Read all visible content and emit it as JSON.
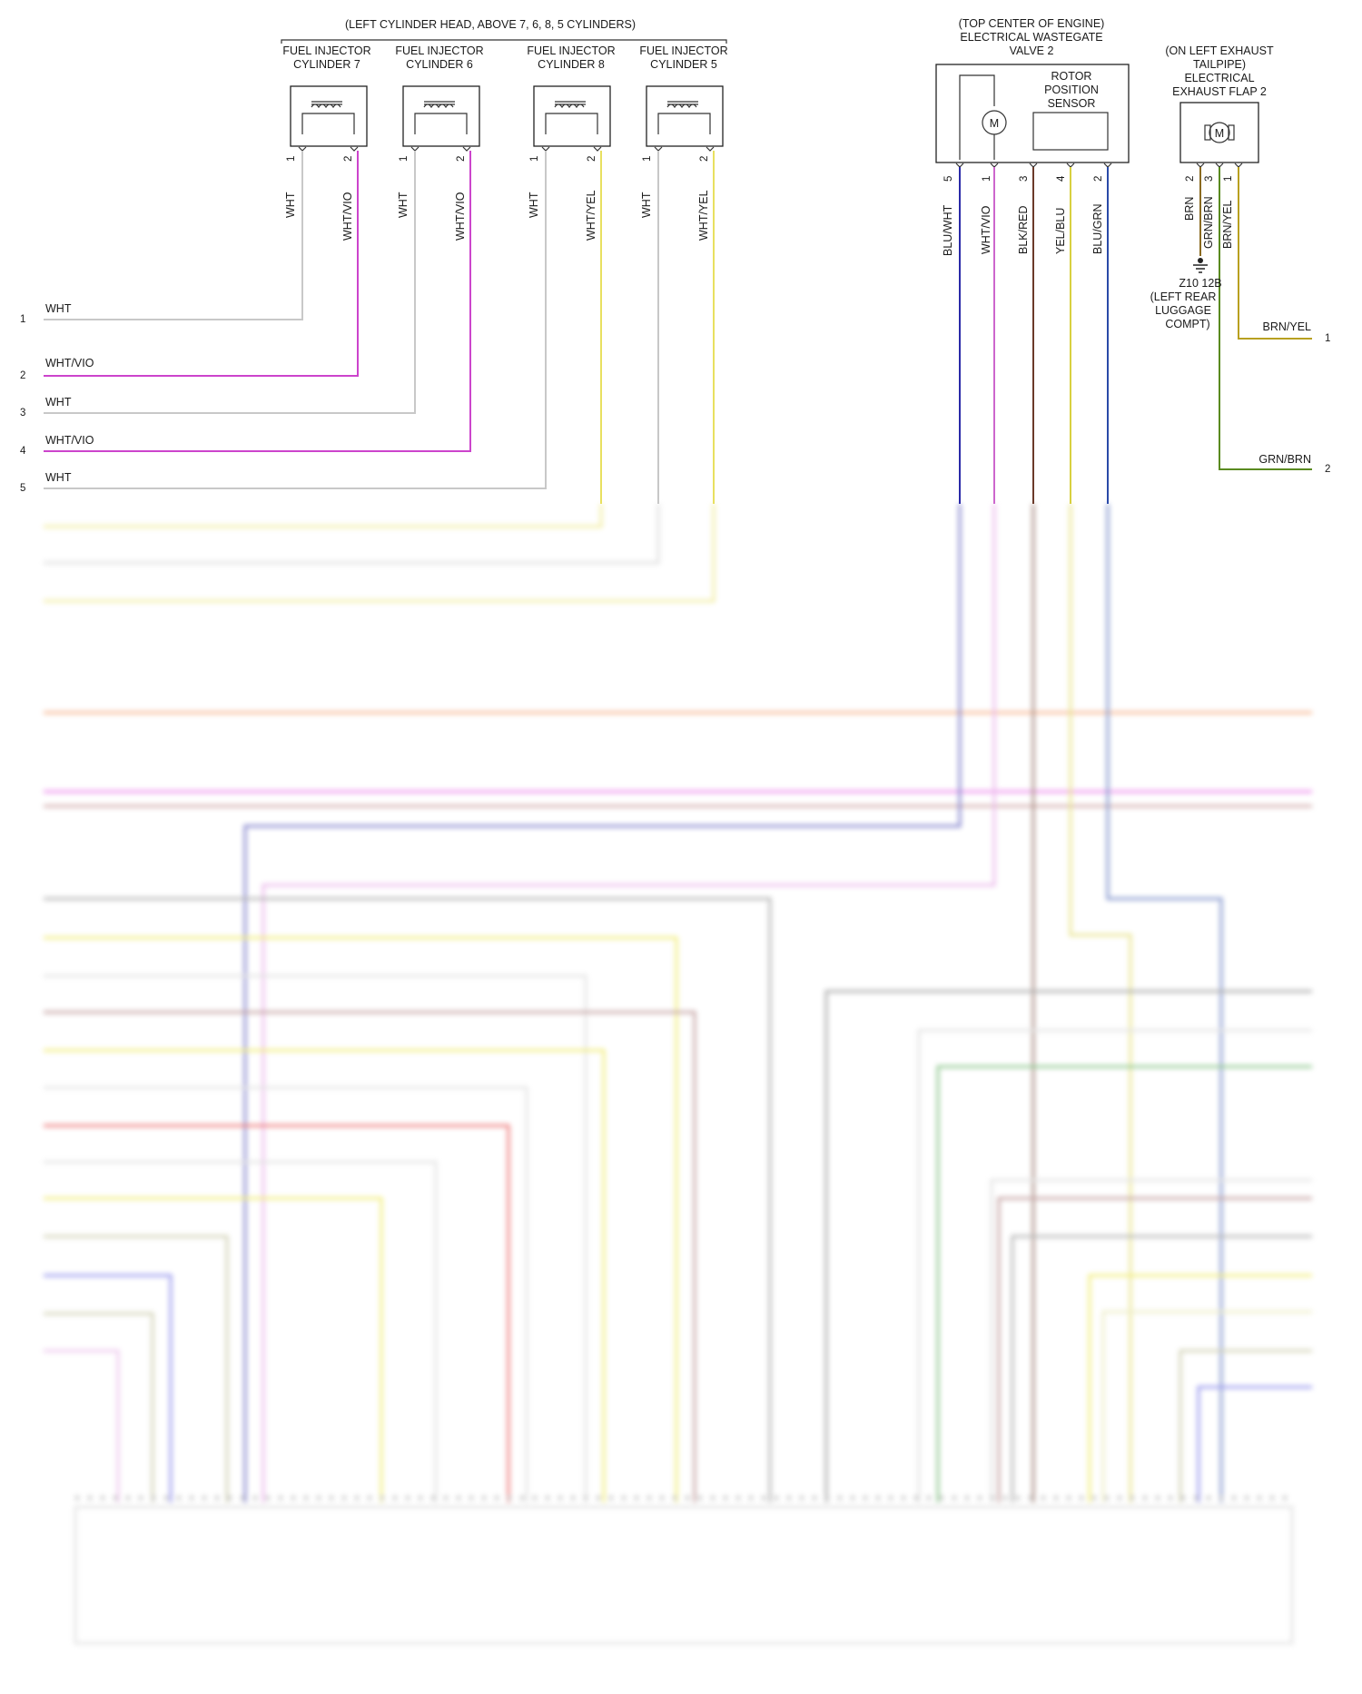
{
  "header": {
    "left_group": "(LEFT CYLINDER HEAD, ABOVE 7, 6, 8, 5 CYLINDERS)",
    "wastegate_location": [
      "(TOP CENTER OF ENGINE)",
      "ELECTRICAL WASTEGATE",
      "VALVE 2"
    ],
    "flap_location": [
      "(ON LEFT EXHAUST",
      "TAILPIPE)",
      "ELECTRICAL",
      "EXHAUST FLAP 2"
    ]
  },
  "injectors": [
    {
      "title": [
        "FUEL INJECTOR",
        "CYLINDER 7"
      ],
      "pin1": "1",
      "pin2": "2",
      "wire1": "WHT",
      "wire2": "WHT/VIO"
    },
    {
      "title": [
        "FUEL INJECTOR",
        "CYLINDER 6"
      ],
      "pin1": "1",
      "pin2": "2",
      "wire1": "WHT",
      "wire2": "WHT/VIO"
    },
    {
      "title": [
        "FUEL INJECTOR",
        "CYLINDER 8"
      ],
      "pin1": "1",
      "pin2": "2",
      "wire1": "WHT",
      "wire2": "WHT/YEL"
    },
    {
      "title": [
        "FUEL INJECTOR",
        "CYLINDER 5"
      ],
      "pin1": "1",
      "pin2": "2",
      "wire1": "WHT",
      "wire2": "WHT/YEL"
    }
  ],
  "wastegate": {
    "sensor_label": [
      "ROTOR",
      "POSITION",
      "SENSOR"
    ],
    "motor_symbol": "M",
    "pins": [
      {
        "num": "5",
        "wire": "BLU/WHT",
        "color": "#2a2aa8"
      },
      {
        "num": "1",
        "wire": "WHT/VIO",
        "color": "#cc66cc"
      },
      {
        "num": "3",
        "wire": "BLK/RED",
        "color": "#6b3a2a"
      },
      {
        "num": "4",
        "wire": "YEL/BLU",
        "color": "#d8d040"
      },
      {
        "num": "2",
        "wire": "BLU/GRN",
        "color": "#2a4aa8"
      }
    ]
  },
  "exhaust_flap": {
    "motor_symbol": "M",
    "pins": [
      {
        "num": "2",
        "wire": "BRN"
      },
      {
        "num": "3",
        "wire": "GRN/BRN"
      },
      {
        "num": "1",
        "wire": "BRN/YEL"
      }
    ],
    "ground": [
      "Z10 12B",
      "(LEFT REAR",
      "LUGGAGE",
      "COMPT)"
    ],
    "right_connections": [
      {
        "wire": "BRN/YEL",
        "pin": "1"
      },
      {
        "wire": "GRN/BRN",
        "pin": "2"
      }
    ]
  },
  "left_connections": [
    {
      "pin": "1",
      "wire": "WHT"
    },
    {
      "pin": "2",
      "wire": "WHT/VIO"
    },
    {
      "pin": "3",
      "wire": "WHT"
    },
    {
      "pin": "4",
      "wire": "WHT/VIO"
    },
    {
      "pin": "5",
      "wire": "WHT"
    }
  ],
  "colors": {
    "wht": "#c8c8c8",
    "vio": "#cc44cc",
    "yel": "#e8e060",
    "brn": "#8a6a20",
    "grn_brn": "#5a8a20",
    "blu": "#2a2aa8",
    "blk_red": "#6b3a2a",
    "blu_grn": "#2a4aa8"
  }
}
